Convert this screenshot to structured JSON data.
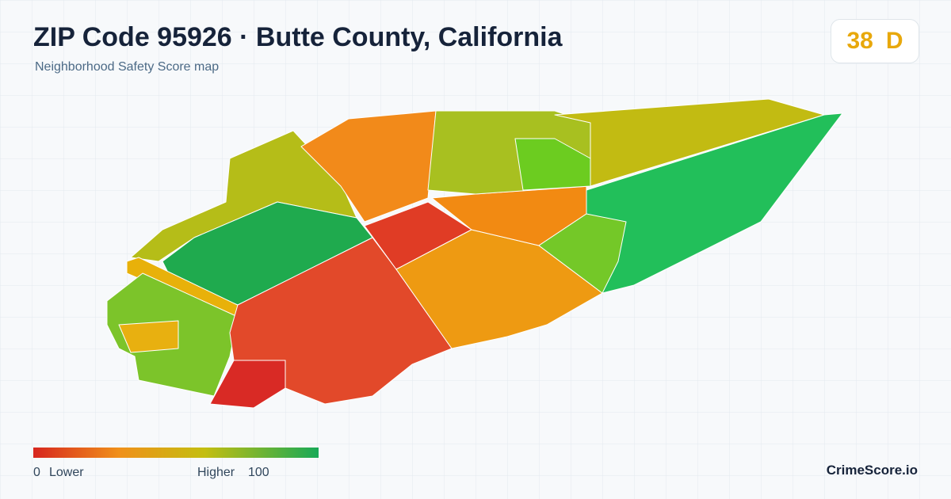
{
  "header": {
    "title": "ZIP Code 95926 · Butte County, California",
    "subtitle": "Neighborhood Safety Score map"
  },
  "score": {
    "value": 38,
    "grade": "D"
  },
  "legend": {
    "min": 0,
    "min_label": "Lower",
    "max_label": "Higher",
    "max": 100
  },
  "brand": "CrimeScore.io"
}
